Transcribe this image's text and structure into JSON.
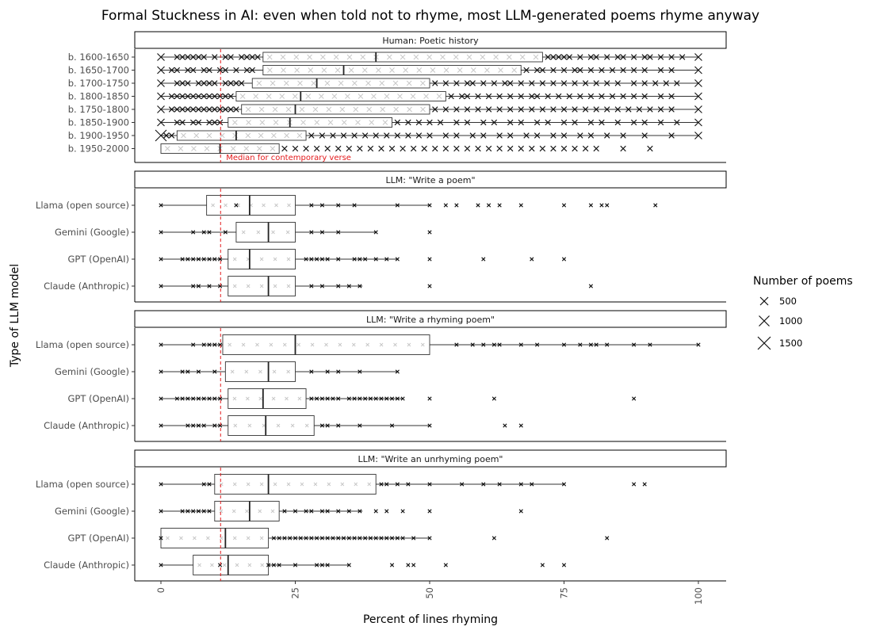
{
  "chart_data": {
    "type": "boxplot",
    "title": "Formal Stuckness in AI: even when told not to rhyme, most LLM-generated poems rhyme anyway",
    "xlabel": "Percent of lines rhyming",
    "ylabel": "Type of LLM model",
    "xlim": [
      -5,
      105
    ],
    "xticks": [
      0,
      25,
      50,
      75,
      100
    ],
    "reference_line": {
      "value": 11.1,
      "label": "Median for contemporary verse",
      "color": "#e41a1c"
    },
    "legend": {
      "title": "Number of poems",
      "entries": [
        {
          "label": "500",
          "value": 500
        },
        {
          "label": "1000",
          "value": 1000
        },
        {
          "label": "1500",
          "value": 1500
        }
      ]
    },
    "panels": [
      {
        "title": "Human: Poetic history",
        "groups": [
          {
            "label": "b. 1600-1650",
            "whisker_low": 0,
            "q1": 19,
            "median": 40,
            "q3": 71,
            "whisker_high": 100,
            "points": [
              0,
              3,
              4,
              5,
              6,
              7,
              8,
              10,
              12,
              13,
              15,
              16,
              17,
              18,
              72,
              73,
              74,
              75,
              76,
              78,
              80,
              81,
              83,
              85,
              86,
              88,
              90,
              91,
              93,
              95,
              97,
              100
            ]
          },
          {
            "label": "b. 1650-1700",
            "whisker_low": 0,
            "q1": 19,
            "median": 34,
            "q3": 67,
            "whisker_high": 100,
            "points": [
              0,
              2,
              3,
              5,
              6,
              8,
              9,
              11,
              12,
              14,
              16,
              17,
              68,
              70,
              71,
              73,
              75,
              77,
              78,
              80,
              82,
              84,
              86,
              88,
              90,
              93,
              95,
              100
            ]
          },
          {
            "label": "b. 1700-1750",
            "whisker_low": 0,
            "q1": 17,
            "median": 29,
            "q3": 50,
            "whisker_high": 100,
            "points": [
              0,
              3,
              4,
              5,
              7,
              8,
              9,
              10,
              12,
              13,
              14,
              15,
              51,
              53,
              55,
              57,
              58,
              60,
              62,
              64,
              65,
              67,
              69,
              71,
              73,
              75,
              77,
              79,
              81,
              83,
              85,
              88,
              90,
              92,
              94,
              96,
              100
            ]
          },
          {
            "label": "b. 1800-1850",
            "whisker_low": 0,
            "q1": 14,
            "median": 26,
            "q3": 53,
            "whisker_high": 100,
            "points": [
              0,
              2,
              3,
              4,
              5,
              6,
              7,
              8,
              9,
              10,
              11,
              12,
              13,
              54,
              56,
              57,
              59,
              61,
              63,
              65,
              67,
              69,
              70,
              72,
              74,
              76,
              78,
              80,
              82,
              84,
              86,
              88,
              90,
              93,
              95,
              100
            ]
          },
          {
            "label": "b. 1750-1800",
            "whisker_low": 0,
            "q1": 15,
            "median": 25,
            "q3": 50,
            "whisker_high": 100,
            "points": [
              0,
              2,
              3,
              4,
              5,
              6,
              7,
              8,
              9,
              10,
              11,
              12,
              13,
              14,
              51,
              53,
              55,
              57,
              59,
              61,
              63,
              65,
              67,
              69,
              71,
              73,
              75,
              77,
              79,
              81,
              83,
              85,
              87,
              89,
              91,
              93,
              95,
              100
            ]
          },
          {
            "label": "b. 1850-1900",
            "whisker_low": 0,
            "q1": 12.5,
            "median": 24,
            "q3": 43,
            "whisker_high": 100,
            "points": [
              0,
              3,
              4,
              6,
              7,
              9,
              10,
              11,
              44,
              46,
              48,
              50,
              52,
              55,
              57,
              60,
              62,
              65,
              67,
              70,
              72,
              75,
              77,
              80,
              82,
              85,
              88,
              90,
              93,
              96,
              100
            ]
          },
          {
            "label": "b. 1900-1950",
            "whisker_low": 0,
            "q1": 3,
            "median": 14,
            "q3": 27,
            "whisker_high": 100,
            "points": [
              0,
              1,
              2,
              28,
              30,
              32,
              34,
              36,
              38,
              40,
              42,
              44,
              46,
              48,
              50,
              53,
              55,
              58,
              60,
              63,
              65,
              68,
              70,
              73,
              75,
              78,
              80,
              83,
              86,
              90,
              95,
              100
            ]
          },
          {
            "label": "b. 1950-2000",
            "whisker_low": 0,
            "q1": 0,
            "median": 11,
            "q3": 22,
            "whisker_high": 22,
            "points": [
              23,
              25,
              27,
              29,
              31,
              33,
              35,
              37,
              39,
              41,
              43,
              45,
              47,
              49,
              51,
              53,
              55,
              57,
              59,
              61,
              63,
              65,
              67,
              69,
              71,
              73,
              75,
              77,
              79,
              81,
              86,
              91
            ]
          }
        ]
      },
      {
        "title": "LLM: \"Write a poem\"",
        "groups": [
          {
            "label": "Llama (open source)",
            "whisker_low": 0,
            "q1": 8.5,
            "median": 16.5,
            "q3": 25,
            "whisker_high": 50,
            "points": [
              0,
              14,
              28,
              30,
              33,
              36,
              44,
              50,
              53,
              55,
              59,
              61,
              63,
              67,
              75,
              80,
              82,
              83,
              92
            ]
          },
          {
            "label": "Gemini (Google)",
            "whisker_low": 0,
            "q1": 14,
            "median": 20,
            "q3": 25,
            "whisker_high": 40,
            "points": [
              0,
              6,
              8,
              9,
              12,
              28,
              30,
              33,
              40,
              50
            ]
          },
          {
            "label": "GPT (OpenAI)",
            "whisker_low": 0,
            "q1": 12.5,
            "median": 16.5,
            "q3": 25,
            "whisker_high": 44,
            "points": [
              0,
              4,
              5,
              6,
              7,
              8,
              9,
              10,
              11,
              27,
              28,
              29,
              30,
              31,
              33,
              36,
              37,
              38,
              40,
              42,
              44,
              50,
              60,
              69,
              75
            ]
          },
          {
            "label": "Claude (Anthropic)",
            "whisker_low": 0,
            "q1": 12.5,
            "median": 20,
            "q3": 25,
            "whisker_high": 37.5,
            "points": [
              0,
              6,
              7,
              9,
              11,
              28,
              30,
              33,
              35,
              37,
              50,
              80
            ]
          }
        ]
      },
      {
        "title": "LLM: \"Write a rhyming poem\"",
        "groups": [
          {
            "label": "Llama (open source)",
            "whisker_low": 0,
            "q1": 11.5,
            "median": 25,
            "q3": 50,
            "whisker_high": 100,
            "points": [
              0,
              6,
              8,
              9,
              10,
              11,
              55,
              58,
              60,
              62,
              63,
              67,
              70,
              75,
              78,
              80,
              81,
              83,
              88,
              91,
              100
            ]
          },
          {
            "label": "Gemini (Google)",
            "whisker_low": 0,
            "q1": 12,
            "median": 20,
            "q3": 25,
            "whisker_high": 44,
            "points": [
              0,
              4,
              5,
              7,
              10,
              28,
              31,
              33,
              37,
              44
            ]
          },
          {
            "label": "GPT (OpenAI)",
            "whisker_low": 0,
            "q1": 12.5,
            "median": 19,
            "q3": 27,
            "whisker_high": 45,
            "points": [
              0,
              3,
              4,
              5,
              6,
              7,
              8,
              9,
              10,
              11,
              28,
              29,
              30,
              31,
              32,
              33,
              35,
              36,
              37,
              38,
              39,
              40,
              41,
              42,
              43,
              44,
              45,
              50,
              62,
              88
            ]
          },
          {
            "label": "Claude (Anthropic)",
            "whisker_low": 0,
            "q1": 12.5,
            "median": 19.5,
            "q3": 28.5,
            "whisker_high": 50,
            "points": [
              0,
              5,
              6,
              7,
              8,
              10,
              11,
              30,
              31,
              33,
              37,
              43,
              50,
              64,
              67
            ]
          }
        ]
      },
      {
        "title": "LLM: \"Write an unrhyming poem\"",
        "groups": [
          {
            "label": "Llama (open source)",
            "whisker_low": 0,
            "q1": 10,
            "median": 20,
            "q3": 40,
            "whisker_high": 75,
            "points": [
              0,
              8,
              9,
              41,
              42,
              44,
              46,
              50,
              56,
              60,
              63,
              67,
              69,
              75,
              88,
              90
            ]
          },
          {
            "label": "Gemini (Google)",
            "whisker_low": 0,
            "q1": 10,
            "median": 16.5,
            "q3": 22,
            "whisker_high": 37.5,
            "points": [
              0,
              4,
              5,
              6,
              7,
              8,
              9,
              23,
              25,
              27,
              28,
              30,
              31,
              33,
              35,
              37,
              40,
              42,
              45,
              50,
              67
            ]
          },
          {
            "label": "GPT (OpenAI)",
            "whisker_low": 0,
            "q1": 0,
            "median": 12,
            "q3": 20,
            "whisker_high": 50,
            "points": [
              0,
              21,
              22,
              23,
              24,
              25,
              26,
              27,
              28,
              29,
              30,
              31,
              32,
              33,
              34,
              35,
              36,
              37,
              38,
              39,
              40,
              41,
              42,
              43,
              44,
              45,
              47,
              50,
              62,
              83
            ]
          },
          {
            "label": "Claude (Anthropic)",
            "whisker_low": 0,
            "q1": 6,
            "median": 12.5,
            "q3": 20,
            "whisker_high": 35,
            "points": [
              0,
              11,
              20,
              21,
              22,
              25,
              29,
              30,
              31,
              35,
              43,
              46,
              47,
              53,
              71,
              75
            ]
          }
        ]
      }
    ]
  }
}
